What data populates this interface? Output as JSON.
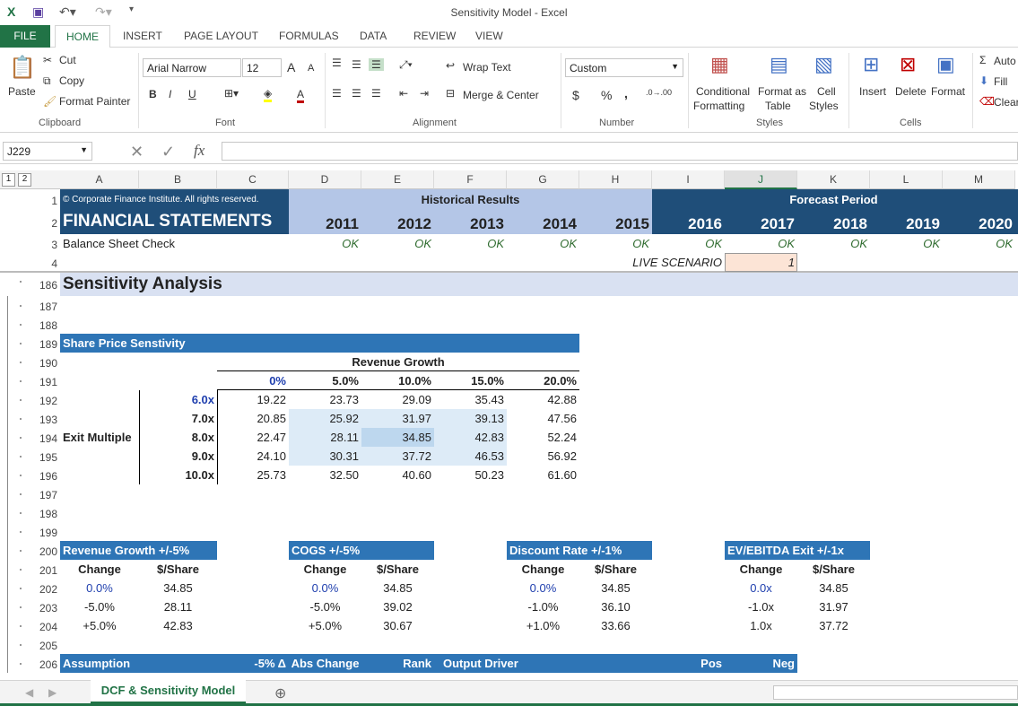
{
  "window": {
    "title": "Sensitivity Model - Excel"
  },
  "ribbon_tabs": [
    "FILE",
    "HOME",
    "INSERT",
    "PAGE LAYOUT",
    "FORMULAS",
    "DATA",
    "REVIEW",
    "VIEW"
  ],
  "clipboard": {
    "paste": "Paste",
    "cut": "Cut",
    "copy": "Copy",
    "format_painter": "Format Painter",
    "label": "Clipboard"
  },
  "font": {
    "name": "Arial Narrow",
    "size": "12",
    "label": "Font",
    "bold": "B",
    "italic": "I",
    "underline": "U",
    "grow": "A",
    "shrink": "A",
    "color": "A"
  },
  "alignment": {
    "wrap": "Wrap Text",
    "merge": "Merge & Center",
    "label": "Alignment"
  },
  "number": {
    "format": "Custom",
    "currency": "$",
    "percent": "%",
    "comma": ",",
    "label": "Number"
  },
  "styles": {
    "conditional": "Conditional",
    "conditional2": "Formatting",
    "format_table": "Format as",
    "format_table2": "Table",
    "cell_styles": "Cell",
    "cell_styles2": "Styles",
    "label": "Styles"
  },
  "cells_grp": {
    "insert": "Insert",
    "delete": "Delete",
    "format": "Format",
    "label": "Cells"
  },
  "editing": {
    "autosum": "Auto",
    "fill": "Fill",
    "clear": "Clear"
  },
  "formula_bar": {
    "name_box": "J229",
    "fx": "fx",
    "value": ""
  },
  "outline_levels": [
    "1",
    "2"
  ],
  "columns": [
    "A",
    "B",
    "C",
    "D",
    "E",
    "F",
    "G",
    "H",
    "I",
    "J",
    "K",
    "L",
    "M"
  ],
  "selected_column": "J",
  "rows": [
    "1",
    "2",
    "3",
    "4",
    "186",
    "187",
    "188",
    "189",
    "190",
    "191",
    "192",
    "193",
    "194",
    "195",
    "196",
    "197",
    "198",
    "199",
    "200",
    "201",
    "202",
    "203",
    "204",
    "205",
    "206"
  ],
  "colors": {
    "dark_blue": "#1f4e79",
    "mid_blue": "#2e75b6",
    "light_blue": "#b4c6e7",
    "section": "#d9e1f2",
    "highlight": "#ddebf7",
    "highlight_dark": "#bdd7ee",
    "live": "#fce4d6",
    "green": "#217346"
  },
  "cells": [
    {
      "ref": "A1",
      "v": "© Corporate Finance Institute. All rights reserved.",
      "s": "l small white"
    },
    {
      "ref": "E1",
      "v": "Historical Results",
      "s": "c b"
    },
    {
      "ref": "K1",
      "v": "Forecast Period",
      "s": "c b white"
    },
    {
      "ref": "A2",
      "v": "FINANCIAL STATEMENTS",
      "s": "l b white big"
    },
    {
      "ref": "D2",
      "v": "2011",
      "s": "r b yr"
    },
    {
      "ref": "E2",
      "v": "2012",
      "s": "r b yr"
    },
    {
      "ref": "F2",
      "v": "2013",
      "s": "r b yr"
    },
    {
      "ref": "G2",
      "v": "2014",
      "s": "r b yr"
    },
    {
      "ref": "H2",
      "v": "2015",
      "s": "r b yr"
    },
    {
      "ref": "I2",
      "v": "2016",
      "s": "r b yr white"
    },
    {
      "ref": "J2",
      "v": "2017",
      "s": "r b yr white"
    },
    {
      "ref": "K2",
      "v": "2018",
      "s": "r b yr white"
    },
    {
      "ref": "L2",
      "v": "2019",
      "s": "r b yr white"
    },
    {
      "ref": "M2",
      "v": "2020",
      "s": "r b yr white"
    },
    {
      "ref": "A3",
      "v": "Balance Sheet Check",
      "s": "l"
    },
    {
      "ref": "D3",
      "v": "OK",
      "s": "r ok"
    },
    {
      "ref": "E3",
      "v": "OK",
      "s": "r ok"
    },
    {
      "ref": "F3",
      "v": "OK",
      "s": "r ok"
    },
    {
      "ref": "G3",
      "v": "OK",
      "s": "r ok"
    },
    {
      "ref": "H3",
      "v": "OK",
      "s": "r ok"
    },
    {
      "ref": "I3",
      "v": "OK",
      "s": "r ok"
    },
    {
      "ref": "J3",
      "v": "OK",
      "s": "r ok"
    },
    {
      "ref": "K3",
      "v": "OK",
      "s": "r ok"
    },
    {
      "ref": "L3",
      "v": "OK",
      "s": "r ok"
    },
    {
      "ref": "M3",
      "v": "OK",
      "s": "r ok"
    },
    {
      "ref": "I4",
      "v": "LIVE SCENARIO",
      "s": "r i"
    },
    {
      "ref": "J4",
      "v": "1",
      "s": "r i"
    },
    {
      "ref": "A186",
      "v": "Sensitivity Analysis",
      "s": "l b sec"
    },
    {
      "ref": "A189",
      "v": "Share Price Senstivity",
      "s": "l b white"
    },
    {
      "ref": "E190",
      "v": "Revenue Growth",
      "s": "c b"
    },
    {
      "ref": "C191",
      "v": "0%",
      "s": "r b blue"
    },
    {
      "ref": "D191",
      "v": "5.0%",
      "s": "r b"
    },
    {
      "ref": "E191",
      "v": "10.0%",
      "s": "r b"
    },
    {
      "ref": "F191",
      "v": "15.0%",
      "s": "r b"
    },
    {
      "ref": "G191",
      "v": "20.0%",
      "s": "r b"
    },
    {
      "ref": "B192",
      "v": "6.0x",
      "s": "r b blue"
    },
    {
      "ref": "C192",
      "v": "19.22",
      "s": "r"
    },
    {
      "ref": "D192",
      "v": "23.73",
      "s": "r"
    },
    {
      "ref": "E192",
      "v": "29.09",
      "s": "r"
    },
    {
      "ref": "F192",
      "v": "35.43",
      "s": "r"
    },
    {
      "ref": "G192",
      "v": "42.88",
      "s": "r"
    },
    {
      "ref": "B193",
      "v": "7.0x",
      "s": "r b"
    },
    {
      "ref": "C193",
      "v": "20.85",
      "s": "r"
    },
    {
      "ref": "D193",
      "v": "25.92",
      "s": "r"
    },
    {
      "ref": "E193",
      "v": "31.97",
      "s": "r"
    },
    {
      "ref": "F193",
      "v": "39.13",
      "s": "r"
    },
    {
      "ref": "G193",
      "v": "47.56",
      "s": "r"
    },
    {
      "ref": "A194",
      "v": "Exit Multiple",
      "s": "l b"
    },
    {
      "ref": "B194",
      "v": "8.0x",
      "s": "r b"
    },
    {
      "ref": "C194",
      "v": "22.47",
      "s": "r"
    },
    {
      "ref": "D194",
      "v": "28.11",
      "s": "r"
    },
    {
      "ref": "E194",
      "v": "34.85",
      "s": "r"
    },
    {
      "ref": "F194",
      "v": "42.83",
      "s": "r"
    },
    {
      "ref": "G194",
      "v": "52.24",
      "s": "r"
    },
    {
      "ref": "B195",
      "v": "9.0x",
      "s": "r b"
    },
    {
      "ref": "C195",
      "v": "24.10",
      "s": "r"
    },
    {
      "ref": "D195",
      "v": "30.31",
      "s": "r"
    },
    {
      "ref": "E195",
      "v": "37.72",
      "s": "r"
    },
    {
      "ref": "F195",
      "v": "46.53",
      "s": "r"
    },
    {
      "ref": "G195",
      "v": "56.92",
      "s": "r"
    },
    {
      "ref": "B196",
      "v": "10.0x",
      "s": "r b"
    },
    {
      "ref": "C196",
      "v": "25.73",
      "s": "r"
    },
    {
      "ref": "D196",
      "v": "32.50",
      "s": "r"
    },
    {
      "ref": "E196",
      "v": "40.60",
      "s": "r"
    },
    {
      "ref": "F196",
      "v": "50.23",
      "s": "r"
    },
    {
      "ref": "G196",
      "v": "61.60",
      "s": "r"
    },
    {
      "ref": "A200",
      "v": "Revenue Growth +/-5%",
      "s": "l b white"
    },
    {
      "ref": "D200",
      "v": "COGS +/-5%",
      "s": "l b white"
    },
    {
      "ref": "G200",
      "v": "Discount Rate +/-1%",
      "s": "l b white"
    },
    {
      "ref": "J200",
      "v": "EV/EBITDA Exit +/-1x",
      "s": "l b white"
    },
    {
      "ref": "A201",
      "v": "Change",
      "s": "c b"
    },
    {
      "ref": "B201",
      "v": "$/Share",
      "s": "c b"
    },
    {
      "ref": "D201",
      "v": "Change",
      "s": "c b"
    },
    {
      "ref": "E201",
      "v": "$/Share",
      "s": "c b"
    },
    {
      "ref": "G201",
      "v": "Change",
      "s": "c b"
    },
    {
      "ref": "H201",
      "v": "$/Share",
      "s": "c b"
    },
    {
      "ref": "J201",
      "v": "Change",
      "s": "c b"
    },
    {
      "ref": "K201",
      "v": "$/Share",
      "s": "c b"
    },
    {
      "ref": "A202",
      "v": "0.0%",
      "s": "c blue"
    },
    {
      "ref": "B202",
      "v": "34.85",
      "s": "c"
    },
    {
      "ref": "D202",
      "v": "0.0%",
      "s": "c blue"
    },
    {
      "ref": "E202",
      "v": "34.85",
      "s": "c"
    },
    {
      "ref": "G202",
      "v": "0.0%",
      "s": "c blue"
    },
    {
      "ref": "H202",
      "v": "34.85",
      "s": "c"
    },
    {
      "ref": "J202",
      "v": "0.0x",
      "s": "c blue"
    },
    {
      "ref": "K202",
      "v": "34.85",
      "s": "c"
    },
    {
      "ref": "A203",
      "v": "-5.0%",
      "s": "c"
    },
    {
      "ref": "B203",
      "v": "28.11",
      "s": "c"
    },
    {
      "ref": "D203",
      "v": "-5.0%",
      "s": "c"
    },
    {
      "ref": "E203",
      "v": "39.02",
      "s": "c"
    },
    {
      "ref": "G203",
      "v": "-1.0%",
      "s": "c"
    },
    {
      "ref": "H203",
      "v": "36.10",
      "s": "c"
    },
    {
      "ref": "J203",
      "v": "-1.0x",
      "s": "c"
    },
    {
      "ref": "K203",
      "v": "31.97",
      "s": "c"
    },
    {
      "ref": "A204",
      "v": "+5.0%",
      "s": "c"
    },
    {
      "ref": "B204",
      "v": "42.83",
      "s": "c"
    },
    {
      "ref": "D204",
      "v": "+5.0%",
      "s": "c"
    },
    {
      "ref": "E204",
      "v": "30.67",
      "s": "c"
    },
    {
      "ref": "G204",
      "v": "+1.0%",
      "s": "c"
    },
    {
      "ref": "H204",
      "v": "33.66",
      "s": "c"
    },
    {
      "ref": "J204",
      "v": "1.0x",
      "s": "c"
    },
    {
      "ref": "K204",
      "v": "37.72",
      "s": "c"
    },
    {
      "ref": "A206",
      "v": "Assumption",
      "s": "l b white"
    },
    {
      "ref": "C206",
      "v": "-5% Δ",
      "s": "r b white"
    },
    {
      "ref": "D206",
      "v": "Abs Change",
      "s": "c b white"
    },
    {
      "ref": "E206",
      "v": "Rank",
      "s": "r b white"
    },
    {
      "ref": "F206",
      "v": "Output Driver",
      "s": "c b white"
    },
    {
      "ref": "I206",
      "v": "Pos",
      "s": "r b white"
    },
    {
      "ref": "J206",
      "v": "Neg",
      "s": "r b white"
    }
  ],
  "sheet_tabs": [
    "DCF & Sensitivity Model"
  ],
  "active_sheet": "DCF & Sensitivity Model"
}
